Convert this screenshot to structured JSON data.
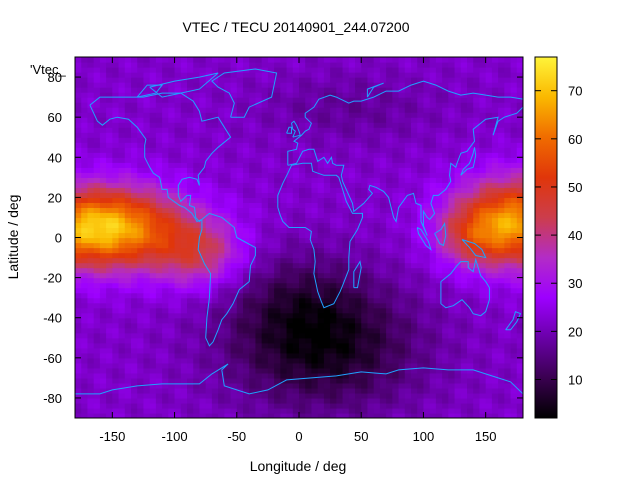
{
  "chart_data": {
    "type": "heatmap",
    "title": "VTEC / TECU 20140901_244.07200",
    "xlabel": "Longitude / deg",
    "ylabel": "Latitude / deg",
    "xlim": [
      -180,
      180
    ],
    "ylim": [
      -90,
      90
    ],
    "x_ticks": [
      -150,
      -100,
      -50,
      0,
      50,
      100,
      150
    ],
    "y_ticks": [
      -80,
      -60,
      -40,
      -20,
      0,
      20,
      40,
      60,
      80
    ],
    "colorbar": {
      "min": 2,
      "max": 77,
      "ticks": [
        10,
        20,
        30,
        40,
        50,
        60,
        70
      ],
      "palette": [
        "#000000",
        "#3a0050",
        "#6a00a8",
        "#9d00ff",
        "#b32cc6",
        "#cc3d4c",
        "#e0360a",
        "#f06c00",
        "#fab800",
        "#fff43a"
      ]
    },
    "legend": "'Vtec_",
    "grid": "off",
    "coastline_color": "#1fa2ff",
    "field_description_values": {
      "note_none": ""
    }
  },
  "regions": {
    "west_band_peak": 73,
    "east_band_peak": 65,
    "background_mid": 22,
    "southern_low": 5
  }
}
